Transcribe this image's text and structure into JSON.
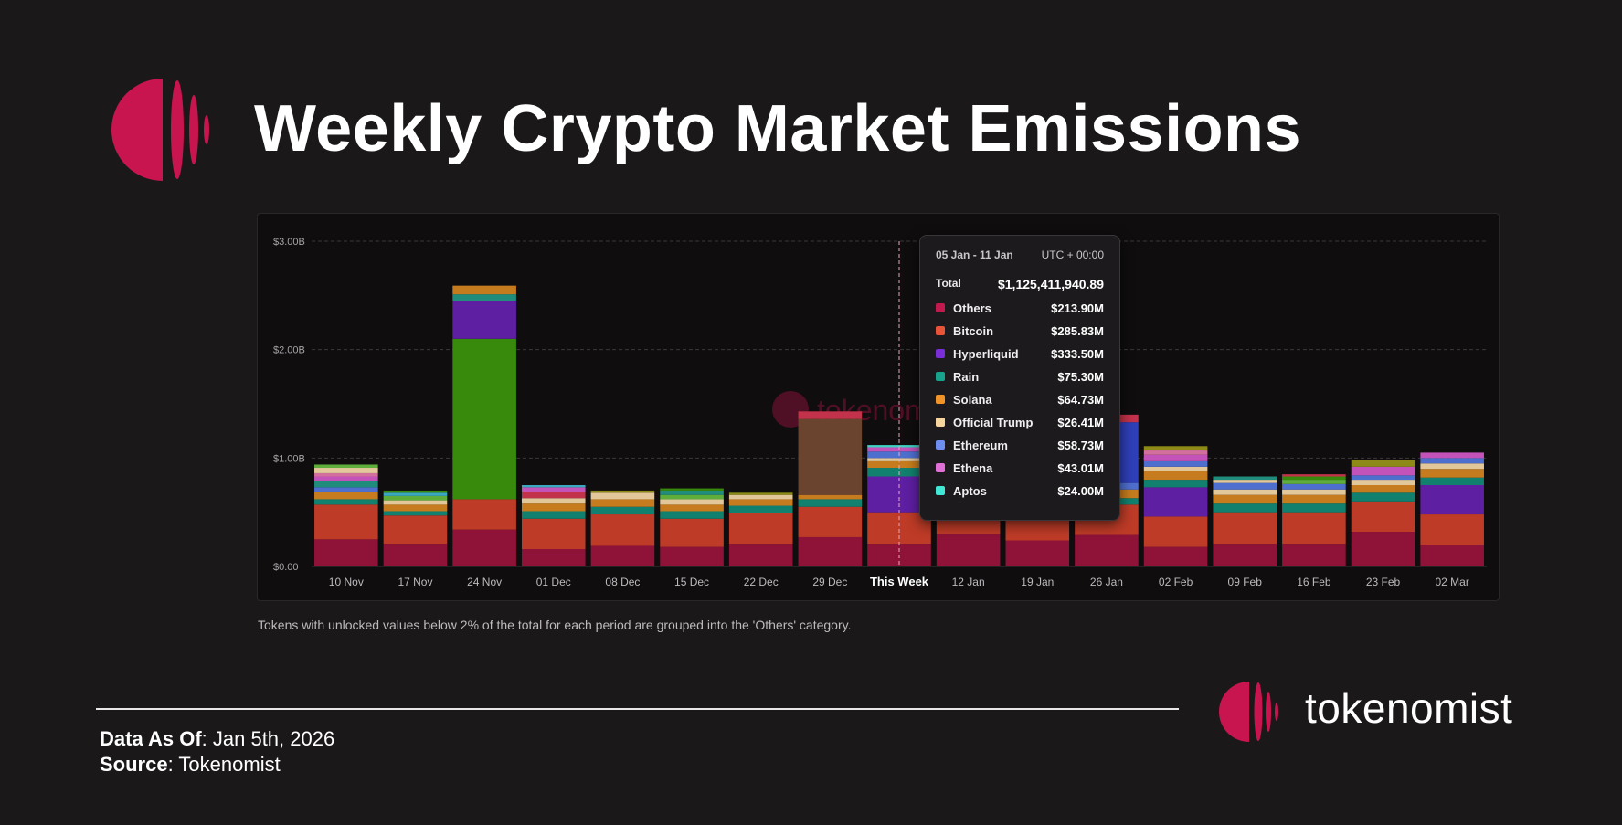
{
  "title": "Weekly Crypto Market Emissions",
  "footnote": "Tokens with unlocked values below 2% of the total for each period are grouped into the 'Others' category.",
  "meta": {
    "date_label": "Data As Of",
    "date_value": ": Jan 5th, 2026",
    "source_label": "Source",
    "source_value": ": Tokenomist"
  },
  "brand": {
    "name": "tokenomist",
    "watermark": "tokenomist"
  },
  "colors": {
    "accent": "#c8154f",
    "Others": "#8f1238",
    "Bitcoin": "#bd3b27",
    "Hyperliquid": "#5e1fa3",
    "Rain": "#12806e",
    "Solana": "#c67c1e",
    "Official Trump": "#e1c79a",
    "Ethereum": "#4f6fce",
    "Ethena": "#c353b8",
    "Aptos": "#3fd1c2",
    "Green": "#388a0c",
    "Brown": "#6b4430",
    "Blue": "#2e3fb8",
    "Olive": "#8e8a17",
    "Lime": "#5fad3b",
    "Cyan": "#3aa8bf",
    "Pink": "#d26f9c",
    "Teal": "#1f8c7c",
    "Orange": "#e8872b",
    "Red": "#c2324a"
  },
  "tooltip": {
    "range": "05 Jan - 11 Jan",
    "tz": "UTC + 00:00",
    "total_label": "Total",
    "total_value": "$1,125,411,940.89",
    "rows": [
      {
        "name": "Others",
        "value": "$213.90M",
        "color": "#c21a4e"
      },
      {
        "name": "Bitcoin",
        "value": "$285.83M",
        "color": "#e8543a"
      },
      {
        "name": "Hyperliquid",
        "value": "$333.50M",
        "color": "#7a2fd6"
      },
      {
        "name": "Rain",
        "value": "$75.30M",
        "color": "#17a38c"
      },
      {
        "name": "Solana",
        "value": "$64.73M",
        "color": "#f0942a"
      },
      {
        "name": "Official Trump",
        "value": "$26.41M",
        "color": "#f6d59e"
      },
      {
        "name": "Ethereum",
        "value": "$58.73M",
        "color": "#6e8ef0"
      },
      {
        "name": "Ethena",
        "value": "$43.01M",
        "color": "#e06fd6"
      },
      {
        "name": "Aptos",
        "value": "$24.00M",
        "color": "#41e6d5"
      }
    ]
  },
  "chart_data": {
    "type": "bar",
    "stacked": true,
    "title": "",
    "xlabel": "",
    "ylabel": "",
    "ylim": [
      0,
      3.0
    ],
    "y_unit": "B",
    "y_ticks": [
      0,
      1,
      2,
      3
    ],
    "y_tick_labels": [
      "$0.00",
      "$1.00B",
      "$2.00B",
      "$3.00B"
    ],
    "categories": [
      "10 Nov",
      "17 Nov",
      "24 Nov",
      "01 Dec",
      "08 Dec",
      "15 Dec",
      "22 Dec",
      "29 Dec",
      "This Week",
      "12 Jan",
      "19 Jan",
      "26 Jan",
      "02 Feb",
      "09 Feb",
      "16 Feb",
      "23 Feb",
      "02 Mar"
    ],
    "highlight_category": "This Week",
    "stacks": [
      [
        [
          "Others",
          0.25
        ],
        [
          "Bitcoin",
          0.32
        ],
        [
          "Rain",
          0.05
        ],
        [
          "Solana",
          0.07
        ],
        [
          "Ethereum",
          0.04
        ],
        [
          "Teal",
          0.06
        ],
        [
          "Ethena",
          0.04
        ],
        [
          "Pink",
          0.03
        ],
        [
          "Official Trump",
          0.05
        ],
        [
          "Lime",
          0.03
        ]
      ],
      [
        [
          "Others",
          0.21
        ],
        [
          "Bitcoin",
          0.26
        ],
        [
          "Rain",
          0.04
        ],
        [
          "Solana",
          0.06
        ],
        [
          "Official Trump",
          0.04
        ],
        [
          "Lime",
          0.04
        ],
        [
          "Cyan",
          0.03
        ],
        [
          "Green",
          0.02
        ]
      ],
      [
        [
          "Others",
          0.34
        ],
        [
          "Bitcoin",
          0.28
        ],
        [
          "Green",
          1.48
        ],
        [
          "Hyperliquid",
          0.35
        ],
        [
          "Teal",
          0.06
        ],
        [
          "Solana",
          0.08
        ]
      ],
      [
        [
          "Others",
          0.16
        ],
        [
          "Bitcoin",
          0.28
        ],
        [
          "Rain",
          0.07
        ],
        [
          "Solana",
          0.07
        ],
        [
          "Official Trump",
          0.05
        ],
        [
          "Red",
          0.06
        ],
        [
          "Ethena",
          0.04
        ],
        [
          "Cyan",
          0.02
        ]
      ],
      [
        [
          "Others",
          0.19
        ],
        [
          "Bitcoin",
          0.29
        ],
        [
          "Rain",
          0.07
        ],
        [
          "Solana",
          0.07
        ],
        [
          "Official Trump",
          0.06
        ],
        [
          "Olive",
          0.02
        ]
      ],
      [
        [
          "Others",
          0.18
        ],
        [
          "Bitcoin",
          0.26
        ],
        [
          "Rain",
          0.07
        ],
        [
          "Solana",
          0.06
        ],
        [
          "Official Trump",
          0.05
        ],
        [
          "Lime",
          0.04
        ],
        [
          "Teal",
          0.04
        ],
        [
          "Green",
          0.02
        ]
      ],
      [
        [
          "Others",
          0.21
        ],
        [
          "Bitcoin",
          0.28
        ],
        [
          "Rain",
          0.07
        ],
        [
          "Solana",
          0.06
        ],
        [
          "Official Trump",
          0.04
        ],
        [
          "Olive",
          0.02
        ]
      ],
      [
        [
          "Others",
          0.27
        ],
        [
          "Bitcoin",
          0.28
        ],
        [
          "Rain",
          0.07
        ],
        [
          "Solana",
          0.04
        ],
        [
          "Brown",
          0.7
        ],
        [
          "Red",
          0.07
        ]
      ],
      [
        [
          "Others",
          0.21
        ],
        [
          "Bitcoin",
          0.29
        ],
        [
          "Hyperliquid",
          0.33
        ],
        [
          "Rain",
          0.08
        ],
        [
          "Solana",
          0.06
        ],
        [
          "Official Trump",
          0.03
        ],
        [
          "Ethereum",
          0.06
        ],
        [
          "Ethena",
          0.04
        ],
        [
          "Aptos",
          0.02
        ]
      ],
      [
        [
          "Others",
          0.3
        ],
        [
          "Bitcoin",
          0.26
        ],
        [
          "Rain",
          0.06
        ],
        [
          "Solana",
          0.05
        ]
      ],
      [
        [
          "Others",
          0.24
        ],
        [
          "Bitcoin",
          0.27
        ],
        [
          "Rain",
          0.05
        ],
        [
          "Solana",
          0.05
        ]
      ],
      [
        [
          "Others",
          0.29
        ],
        [
          "Bitcoin",
          0.28
        ],
        [
          "Rain",
          0.06
        ],
        [
          "Solana",
          0.08
        ],
        [
          "Ethereum",
          0.06
        ],
        [
          "Blue",
          0.56
        ],
        [
          "Red",
          0.07
        ]
      ],
      [
        [
          "Others",
          0.18
        ],
        [
          "Bitcoin",
          0.28
        ],
        [
          "Hyperliquid",
          0.27
        ],
        [
          "Rain",
          0.07
        ],
        [
          "Solana",
          0.08
        ],
        [
          "Official Trump",
          0.04
        ],
        [
          "Ethereum",
          0.05
        ],
        [
          "Ethena",
          0.06
        ],
        [
          "Pink",
          0.04
        ],
        [
          "Olive",
          0.04
        ]
      ],
      [
        [
          "Others",
          0.21
        ],
        [
          "Bitcoin",
          0.29
        ],
        [
          "Rain",
          0.08
        ],
        [
          "Solana",
          0.08
        ],
        [
          "Official Trump",
          0.05
        ],
        [
          "Ethereum",
          0.06
        ],
        [
          "Official Trump",
          0.03
        ],
        [
          "Teal",
          0.03
        ]
      ],
      [
        [
          "Others",
          0.21
        ],
        [
          "Bitcoin",
          0.29
        ],
        [
          "Rain",
          0.08
        ],
        [
          "Solana",
          0.08
        ],
        [
          "Official Trump",
          0.05
        ],
        [
          "Ethereum",
          0.05
        ],
        [
          "Lime",
          0.04
        ],
        [
          "Green",
          0.03
        ],
        [
          "Red",
          0.02
        ]
      ],
      [
        [
          "Others",
          0.32
        ],
        [
          "Bitcoin",
          0.28
        ],
        [
          "Rain",
          0.08
        ],
        [
          "Solana",
          0.07
        ],
        [
          "Official Trump",
          0.05
        ],
        [
          "Ethereum",
          0.04
        ],
        [
          "Ethena",
          0.08
        ],
        [
          "Olive",
          0.06
        ]
      ],
      [
        [
          "Others",
          0.2
        ],
        [
          "Bitcoin",
          0.28
        ],
        [
          "Hyperliquid",
          0.27
        ],
        [
          "Rain",
          0.07
        ],
        [
          "Solana",
          0.08
        ],
        [
          "Official Trump",
          0.05
        ],
        [
          "Ethereum",
          0.05
        ],
        [
          "Ethena",
          0.05
        ]
      ]
    ]
  }
}
